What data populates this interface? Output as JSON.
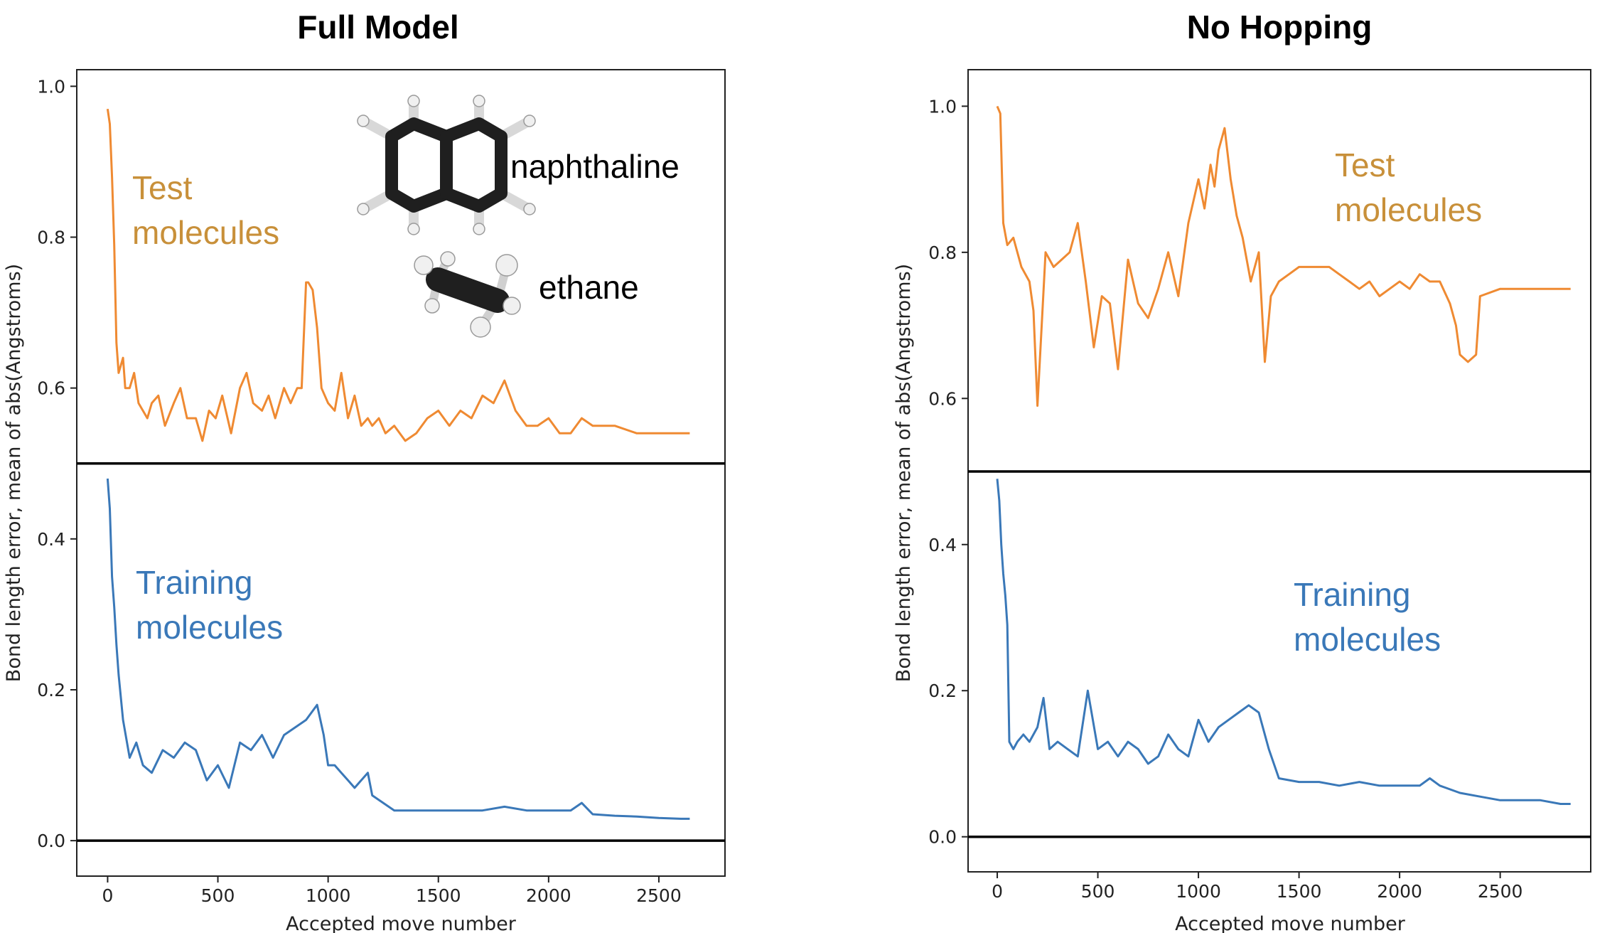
{
  "colors": {
    "test": "#ef8a32",
    "training": "#3a78b8",
    "test_text": "#c8903a"
  },
  "molecules": {
    "naphthalene_label": "naphthaline",
    "ethane_label": "ethane"
  },
  "chart_data": [
    {
      "type": "line",
      "title": "Full Model",
      "xlabel": "Accepted move number",
      "ylabel": "Bond length error, mean of abs(Angstroms)",
      "xlim": [
        -140,
        2800
      ],
      "ylim": [
        -0.047,
        1.022
      ],
      "xticks": [
        "0",
        "500",
        "1000",
        "1500",
        "2000",
        "2500"
      ],
      "yticks": [
        "0.0",
        "0.2",
        "0.4",
        "0.6",
        "0.8",
        "1.0"
      ],
      "hlines": [
        0.0,
        0.5
      ],
      "annotations": {
        "test": [
          "Test",
          "molecules"
        ],
        "training": [
          "Training",
          "molecules"
        ]
      },
      "series": [
        {
          "name": "Test molecules",
          "x": [
            0,
            10,
            20,
            30,
            40,
            50,
            60,
            70,
            80,
            100,
            120,
            140,
            160,
            180,
            200,
            230,
            260,
            300,
            330,
            360,
            400,
            430,
            460,
            490,
            520,
            560,
            600,
            630,
            660,
            700,
            730,
            760,
            800,
            830,
            860,
            880,
            900,
            910,
            930,
            950,
            970,
            1000,
            1030,
            1060,
            1090,
            1120,
            1150,
            1180,
            1200,
            1230,
            1260,
            1300,
            1350,
            1400,
            1450,
            1500,
            1550,
            1600,
            1650,
            1700,
            1750,
            1800,
            1850,
            1900,
            1950,
            2000,
            2050,
            2100,
            2150,
            2200,
            2250,
            2300,
            2400,
            2500,
            2600,
            2640
          ],
          "values": [
            0.97,
            0.95,
            0.88,
            0.79,
            0.66,
            0.62,
            0.63,
            0.64,
            0.6,
            0.6,
            0.62,
            0.58,
            0.57,
            0.56,
            0.58,
            0.59,
            0.55,
            0.58,
            0.6,
            0.56,
            0.56,
            0.53,
            0.57,
            0.56,
            0.59,
            0.54,
            0.6,
            0.62,
            0.58,
            0.57,
            0.59,
            0.56,
            0.6,
            0.58,
            0.6,
            0.6,
            0.74,
            0.74,
            0.73,
            0.68,
            0.6,
            0.58,
            0.57,
            0.62,
            0.56,
            0.59,
            0.55,
            0.56,
            0.55,
            0.56,
            0.54,
            0.55,
            0.53,
            0.54,
            0.56,
            0.57,
            0.55,
            0.57,
            0.56,
            0.59,
            0.58,
            0.61,
            0.57,
            0.55,
            0.55,
            0.56,
            0.54,
            0.54,
            0.56,
            0.55,
            0.55,
            0.55,
            0.54,
            0.54,
            0.54,
            0.54
          ]
        },
        {
          "name": "Training molecules",
          "x": [
            0,
            10,
            20,
            30,
            40,
            50,
            70,
            100,
            130,
            160,
            200,
            250,
            300,
            350,
            400,
            450,
            500,
            550,
            600,
            650,
            700,
            750,
            800,
            850,
            900,
            950,
            980,
            1000,
            1030,
            1060,
            1090,
            1120,
            1150,
            1180,
            1200,
            1250,
            1300,
            1400,
            1500,
            1600,
            1700,
            1800,
            1900,
            2000,
            2100,
            2150,
            2200,
            2300,
            2400,
            2500,
            2600,
            2640
          ],
          "values": [
            0.48,
            0.44,
            0.35,
            0.31,
            0.26,
            0.22,
            0.16,
            0.11,
            0.13,
            0.1,
            0.09,
            0.12,
            0.11,
            0.13,
            0.12,
            0.08,
            0.1,
            0.07,
            0.13,
            0.12,
            0.14,
            0.11,
            0.14,
            0.15,
            0.16,
            0.18,
            0.14,
            0.1,
            0.1,
            0.09,
            0.08,
            0.07,
            0.08,
            0.09,
            0.06,
            0.05,
            0.04,
            0.04,
            0.04,
            0.04,
            0.04,
            0.045,
            0.04,
            0.04,
            0.04,
            0.05,
            0.035,
            0.033,
            0.032,
            0.03,
            0.029,
            0.029
          ]
        }
      ]
    },
    {
      "type": "line",
      "title": "No Hopping",
      "xlabel": "Accepted move number",
      "ylabel": "Bond length error, mean of abs(Angstroms)",
      "xlim": [
        -145,
        2950
      ],
      "ylim": [
        -0.048,
        1.05
      ],
      "xticks": [
        "0",
        "500",
        "1000",
        "1500",
        "2000",
        "2500"
      ],
      "yticks": [
        "0.0",
        "0.2",
        "0.4",
        "0.6",
        "0.8",
        "1.0"
      ],
      "hlines": [
        0.0,
        0.5
      ],
      "annotations": {
        "test": [
          "Test",
          "molecules"
        ],
        "training": [
          "Training",
          "molecules"
        ]
      },
      "series": [
        {
          "name": "Test molecules",
          "x": [
            0,
            15,
            30,
            50,
            80,
            120,
            160,
            180,
            200,
            240,
            280,
            320,
            360,
            400,
            440,
            480,
            520,
            560,
            600,
            650,
            700,
            750,
            800,
            850,
            900,
            950,
            1000,
            1030,
            1060,
            1080,
            1100,
            1130,
            1160,
            1190,
            1220,
            1260,
            1300,
            1330,
            1360,
            1400,
            1450,
            1500,
            1550,
            1600,
            1650,
            1700,
            1750,
            1800,
            1850,
            1900,
            1950,
            2000,
            2050,
            2100,
            2150,
            2200,
            2250,
            2280,
            2300,
            2340,
            2380,
            2400,
            2500,
            2600,
            2700,
            2800,
            2850
          ],
          "values": [
            1.0,
            0.99,
            0.84,
            0.81,
            0.82,
            0.78,
            0.76,
            0.72,
            0.59,
            0.8,
            0.78,
            0.79,
            0.8,
            0.84,
            0.76,
            0.67,
            0.74,
            0.73,
            0.64,
            0.79,
            0.73,
            0.71,
            0.75,
            0.8,
            0.74,
            0.84,
            0.9,
            0.86,
            0.92,
            0.89,
            0.94,
            0.97,
            0.9,
            0.85,
            0.82,
            0.76,
            0.8,
            0.65,
            0.74,
            0.76,
            0.77,
            0.78,
            0.78,
            0.78,
            0.78,
            0.77,
            0.76,
            0.75,
            0.76,
            0.74,
            0.75,
            0.76,
            0.75,
            0.77,
            0.76,
            0.76,
            0.73,
            0.7,
            0.66,
            0.65,
            0.66,
            0.74,
            0.75,
            0.75,
            0.75,
            0.75,
            0.75
          ]
        },
        {
          "name": "Training molecules",
          "x": [
            0,
            10,
            20,
            30,
            40,
            50,
            60,
            80,
            100,
            130,
            160,
            200,
            230,
            260,
            300,
            350,
            400,
            450,
            500,
            550,
            600,
            650,
            700,
            750,
            800,
            850,
            900,
            950,
            1000,
            1050,
            1100,
            1150,
            1200,
            1250,
            1300,
            1350,
            1400,
            1500,
            1600,
            1700,
            1800,
            1900,
            2000,
            2100,
            2150,
            2200,
            2300,
            2400,
            2500,
            2600,
            2700,
            2800,
            2850
          ],
          "values": [
            0.49,
            0.46,
            0.4,
            0.36,
            0.33,
            0.29,
            0.13,
            0.12,
            0.13,
            0.14,
            0.13,
            0.15,
            0.19,
            0.12,
            0.13,
            0.12,
            0.11,
            0.2,
            0.12,
            0.13,
            0.11,
            0.13,
            0.12,
            0.1,
            0.11,
            0.14,
            0.12,
            0.11,
            0.16,
            0.13,
            0.15,
            0.16,
            0.17,
            0.18,
            0.17,
            0.12,
            0.08,
            0.075,
            0.075,
            0.07,
            0.075,
            0.07,
            0.07,
            0.07,
            0.08,
            0.07,
            0.06,
            0.055,
            0.05,
            0.05,
            0.05,
            0.045,
            0.045
          ]
        }
      ]
    }
  ]
}
